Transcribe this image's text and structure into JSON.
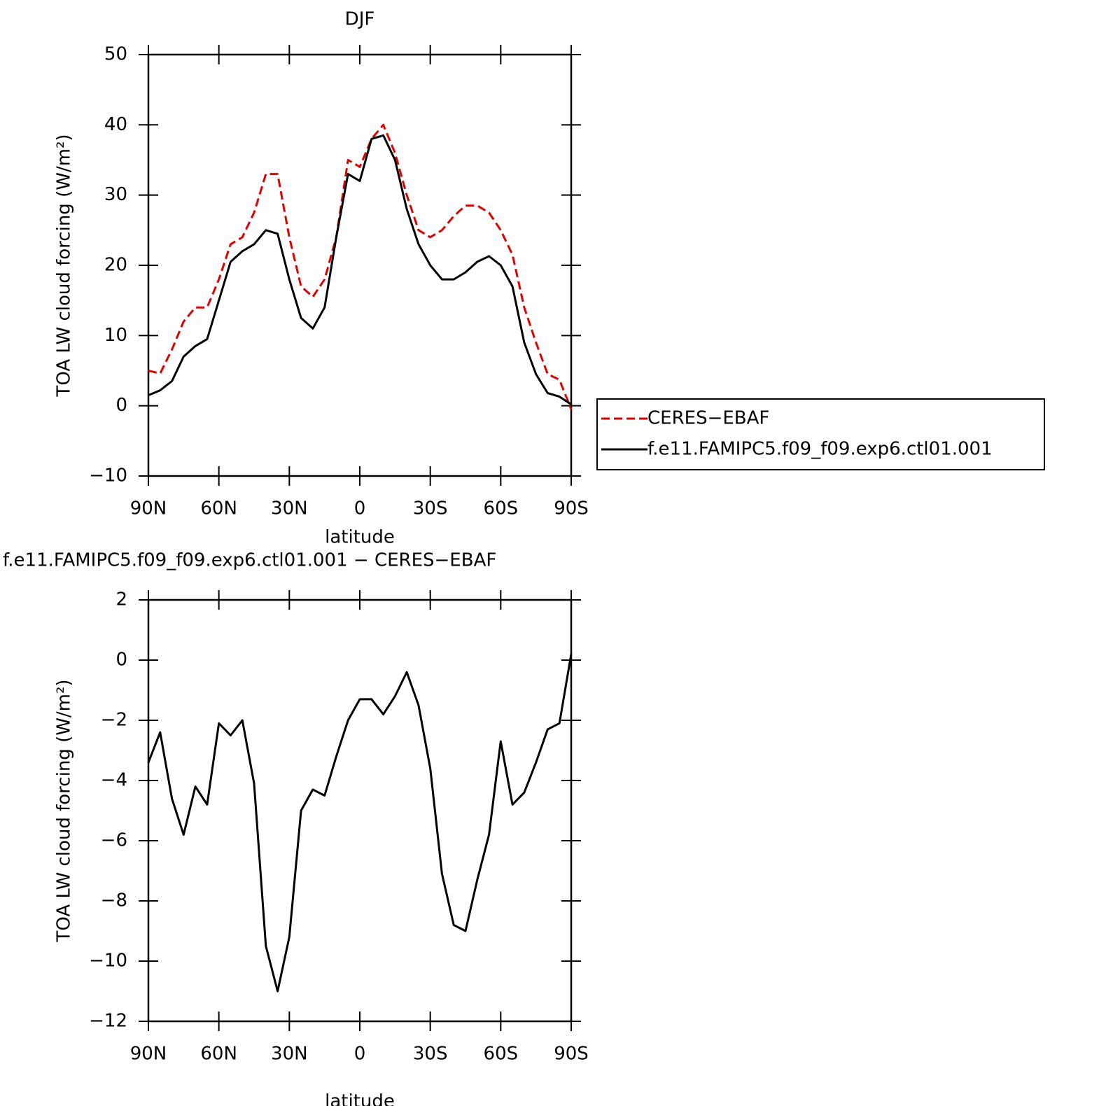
{
  "chart_data": [
    {
      "type": "line",
      "title": "DJF",
      "xlabel": "latitude",
      "ylabel": "TOA LW cloud forcing (W/m²)",
      "x": [
        90,
        85,
        80,
        75,
        70,
        65,
        60,
        55,
        50,
        45,
        40,
        35,
        30,
        25,
        20,
        15,
        10,
        5,
        0,
        -5,
        -10,
        -15,
        -20,
        -25,
        -30,
        -35,
        -40,
        -45,
        -50,
        -55,
        -60,
        -65,
        -70,
        -75,
        -80,
        -85,
        -90
      ],
      "series": [
        {
          "name": "CERES−EBAF",
          "color": "#e00000",
          "line_style": "dashed",
          "values": [
            5,
            4.6,
            8,
            12,
            14,
            14,
            18,
            23,
            24,
            27.5,
            33,
            33,
            24,
            17,
            15.5,
            18,
            24,
            35,
            34,
            38,
            40,
            36,
            30,
            25,
            24,
            25,
            27,
            28.5,
            28.5,
            27.5,
            25,
            21.5,
            14,
            9,
            4.5,
            3.7,
            -0.5
          ]
        },
        {
          "name": "f.e11.FAMIPC5.f09_f09.exp6.ctl01.001",
          "color": "#000000",
          "line_style": "solid",
          "values": [
            1.5,
            2.2,
            3.5,
            7,
            8.5,
            9.5,
            15,
            20.5,
            22,
            23,
            25,
            24.5,
            18,
            12.5,
            11,
            14,
            24,
            33,
            32,
            38,
            38.5,
            35,
            28,
            23,
            20,
            18,
            18,
            19,
            20.5,
            21.3,
            20,
            17,
            9,
            4.5,
            1.8,
            1.3,
            0.2
          ]
        }
      ],
      "xlim": [
        90,
        -90
      ],
      "xticks": [
        {
          "value": 90,
          "label": "90N"
        },
        {
          "value": 60,
          "label": "60N"
        },
        {
          "value": 30,
          "label": "30N"
        },
        0,
        {
          "value": -30,
          "label": "30S"
        },
        {
          "value": -60,
          "label": "60S"
        },
        {
          "value": -90,
          "label": "90S"
        }
      ],
      "ylim": [
        -10,
        50
      ],
      "yticks": [
        {
          "value": -10,
          "label": "−10"
        },
        0,
        10,
        20,
        30,
        40,
        50
      ],
      "legend": "outside right"
    },
    {
      "type": "line",
      "title": "f.e11.FAMIPC5.f09_f09.exp6.ctl01.001 − CERES−EBAF",
      "xlabel": "latitude",
      "ylabel": "TOA LW cloud forcing (W/m²)",
      "x": [
        90,
        85,
        80,
        75,
        70,
        65,
        60,
        55,
        50,
        45,
        40,
        35,
        30,
        25,
        20,
        15,
        10,
        5,
        0,
        -5,
        -10,
        -15,
        -20,
        -25,
        -30,
        -35,
        -40,
        -45,
        -50,
        -55,
        -60,
        -65,
        -70,
        -75,
        -80,
        -85,
        -90
      ],
      "series": [
        {
          "color": "#000000",
          "line_style": "solid",
          "values": [
            -3.4,
            -2.4,
            -4.6,
            -5.8,
            -4.2,
            -4.8,
            -2.1,
            -2.5,
            -2,
            -4.1,
            -9.5,
            -11,
            -9.2,
            -5,
            -4.3,
            -4.5,
            -3.2,
            -2,
            -1.3,
            -1.3,
            -1.8,
            -1.2,
            -0.4,
            -1.5,
            -3.6,
            -7.1,
            -8.8,
            -9,
            -7.3,
            -5.8,
            -2.7,
            -4.8,
            -4.4,
            -3.4,
            -2.3,
            -2.1,
            0.2
          ]
        }
      ],
      "xlim": [
        90,
        -90
      ],
      "xticks": [
        {
          "value": 90,
          "label": "90N"
        },
        {
          "value": 60,
          "label": "60N"
        },
        {
          "value": 30,
          "label": "30N"
        },
        0,
        {
          "value": -30,
          "label": "30S"
        },
        {
          "value": -60,
          "label": "60S"
        },
        {
          "value": -90,
          "label": "90S"
        }
      ],
      "ylim": [
        -12,
        2
      ],
      "yticks": [
        {
          "value": -12,
          "label": "−12"
        },
        {
          "value": -10,
          "label": "−10"
        },
        {
          "value": -8,
          "label": "−8"
        },
        {
          "value": -6,
          "label": "−6"
        },
        {
          "value": -4,
          "label": "−4"
        },
        {
          "value": -2,
          "label": "−2"
        },
        0,
        2
      ]
    }
  ]
}
